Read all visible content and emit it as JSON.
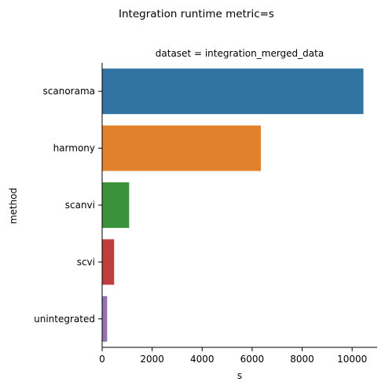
{
  "chart_data": {
    "type": "bar",
    "orientation": "horizontal",
    "title": "Integration runtime metric=s",
    "facet_title": "dataset = integration_merged_data",
    "xlabel": "s",
    "ylabel": "method",
    "xlim": [
      0,
      11000
    ],
    "xticks": [
      0,
      2000,
      4000,
      6000,
      8000,
      10000
    ],
    "xtick_labels": [
      "0",
      "2000",
      "4000",
      "6000",
      "8000",
      "10000"
    ],
    "categories": [
      "scanorama",
      "harmony",
      "scanvi",
      "scvi",
      "unintegrated"
    ],
    "values": [
      10450,
      6350,
      1080,
      480,
      200
    ],
    "colors": [
      "#3274a1",
      "#e1812c",
      "#3a923a",
      "#c03d3e",
      "#9372b2"
    ],
    "grid": false,
    "legend": "none"
  }
}
